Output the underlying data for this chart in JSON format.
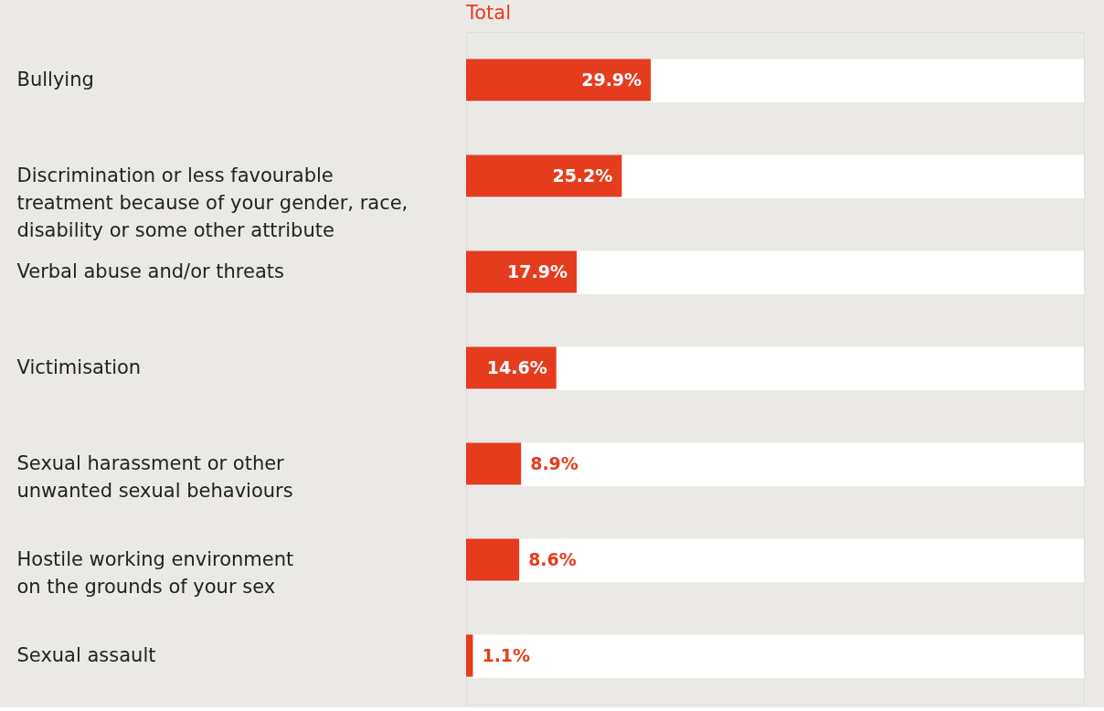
{
  "chart_data": {
    "type": "bar",
    "orientation": "horizontal",
    "title": "Total",
    "categories": [
      "Bullying",
      "Discrimination or less favourable\ntreatment because of your gender, race,\ndisability or some other attribute",
      "Verbal abuse and/or threats",
      "Victimisation",
      "Sexual harassment or other\nunwanted sexual behaviours",
      "Hostile working environment\non the grounds of your sex",
      "Sexual assault"
    ],
    "values": [
      29.9,
      25.2,
      17.9,
      14.6,
      8.9,
      8.6,
      1.1
    ],
    "value_labels": [
      "29.9%",
      "25.2%",
      "17.9%",
      "14.6%",
      "8.9%",
      "8.6%",
      "1.1%"
    ],
    "color": "#e63c1e",
    "xlim": [
      0,
      100
    ]
  }
}
